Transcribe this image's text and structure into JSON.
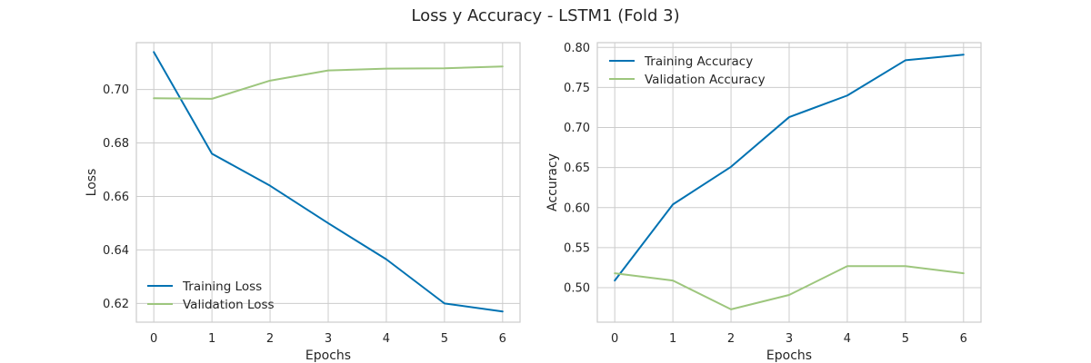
{
  "figure": {
    "title": "Loss y Accuracy - LSTM1 (Fold 3)"
  },
  "chart_data": [
    {
      "type": "line",
      "xlabel": "Epochs",
      "ylabel": "Loss",
      "x": [
        0,
        1,
        2,
        3,
        4,
        5,
        6
      ],
      "xticks": [
        "0",
        "1",
        "2",
        "3",
        "4",
        "5",
        "6"
      ],
      "yticks": [
        "0.62",
        "0.64",
        "0.66",
        "0.68",
        "0.70"
      ],
      "xlim": [
        -0.3,
        6.3
      ],
      "ylim": [
        0.613,
        0.7175
      ],
      "grid": true,
      "legend": "lower-left",
      "series": [
        {
          "name": "Training Loss",
          "color": "#0072B2",
          "values": [
            0.714,
            0.676,
            0.664,
            0.65,
            0.6365,
            0.62,
            0.617
          ]
        },
        {
          "name": "Validation Loss",
          "color": "#9DC67D",
          "values": [
            0.6967,
            0.6965,
            0.7033,
            0.7071,
            0.7078,
            0.7079,
            0.7086
          ]
        }
      ]
    },
    {
      "type": "line",
      "xlabel": "Epochs",
      "ylabel": "Accuracy",
      "x": [
        0,
        1,
        2,
        3,
        4,
        5,
        6
      ],
      "xticks": [
        "0",
        "1",
        "2",
        "3",
        "4",
        "5",
        "6"
      ],
      "yticks": [
        "0.50",
        "0.55",
        "0.60",
        "0.65",
        "0.70",
        "0.75",
        "0.80"
      ],
      "xlim": [
        -0.3,
        6.3
      ],
      "ylim": [
        0.457,
        0.806
      ],
      "grid": true,
      "legend": "upper-left",
      "series": [
        {
          "name": "Training Accuracy",
          "color": "#0072B2",
          "values": [
            0.509,
            0.604,
            0.651,
            0.713,
            0.74,
            0.784,
            0.791
          ]
        },
        {
          "name": "Validation Accuracy",
          "color": "#9DC67D",
          "values": [
            0.518,
            0.509,
            0.473,
            0.491,
            0.527,
            0.527,
            0.518
          ]
        }
      ]
    }
  ]
}
